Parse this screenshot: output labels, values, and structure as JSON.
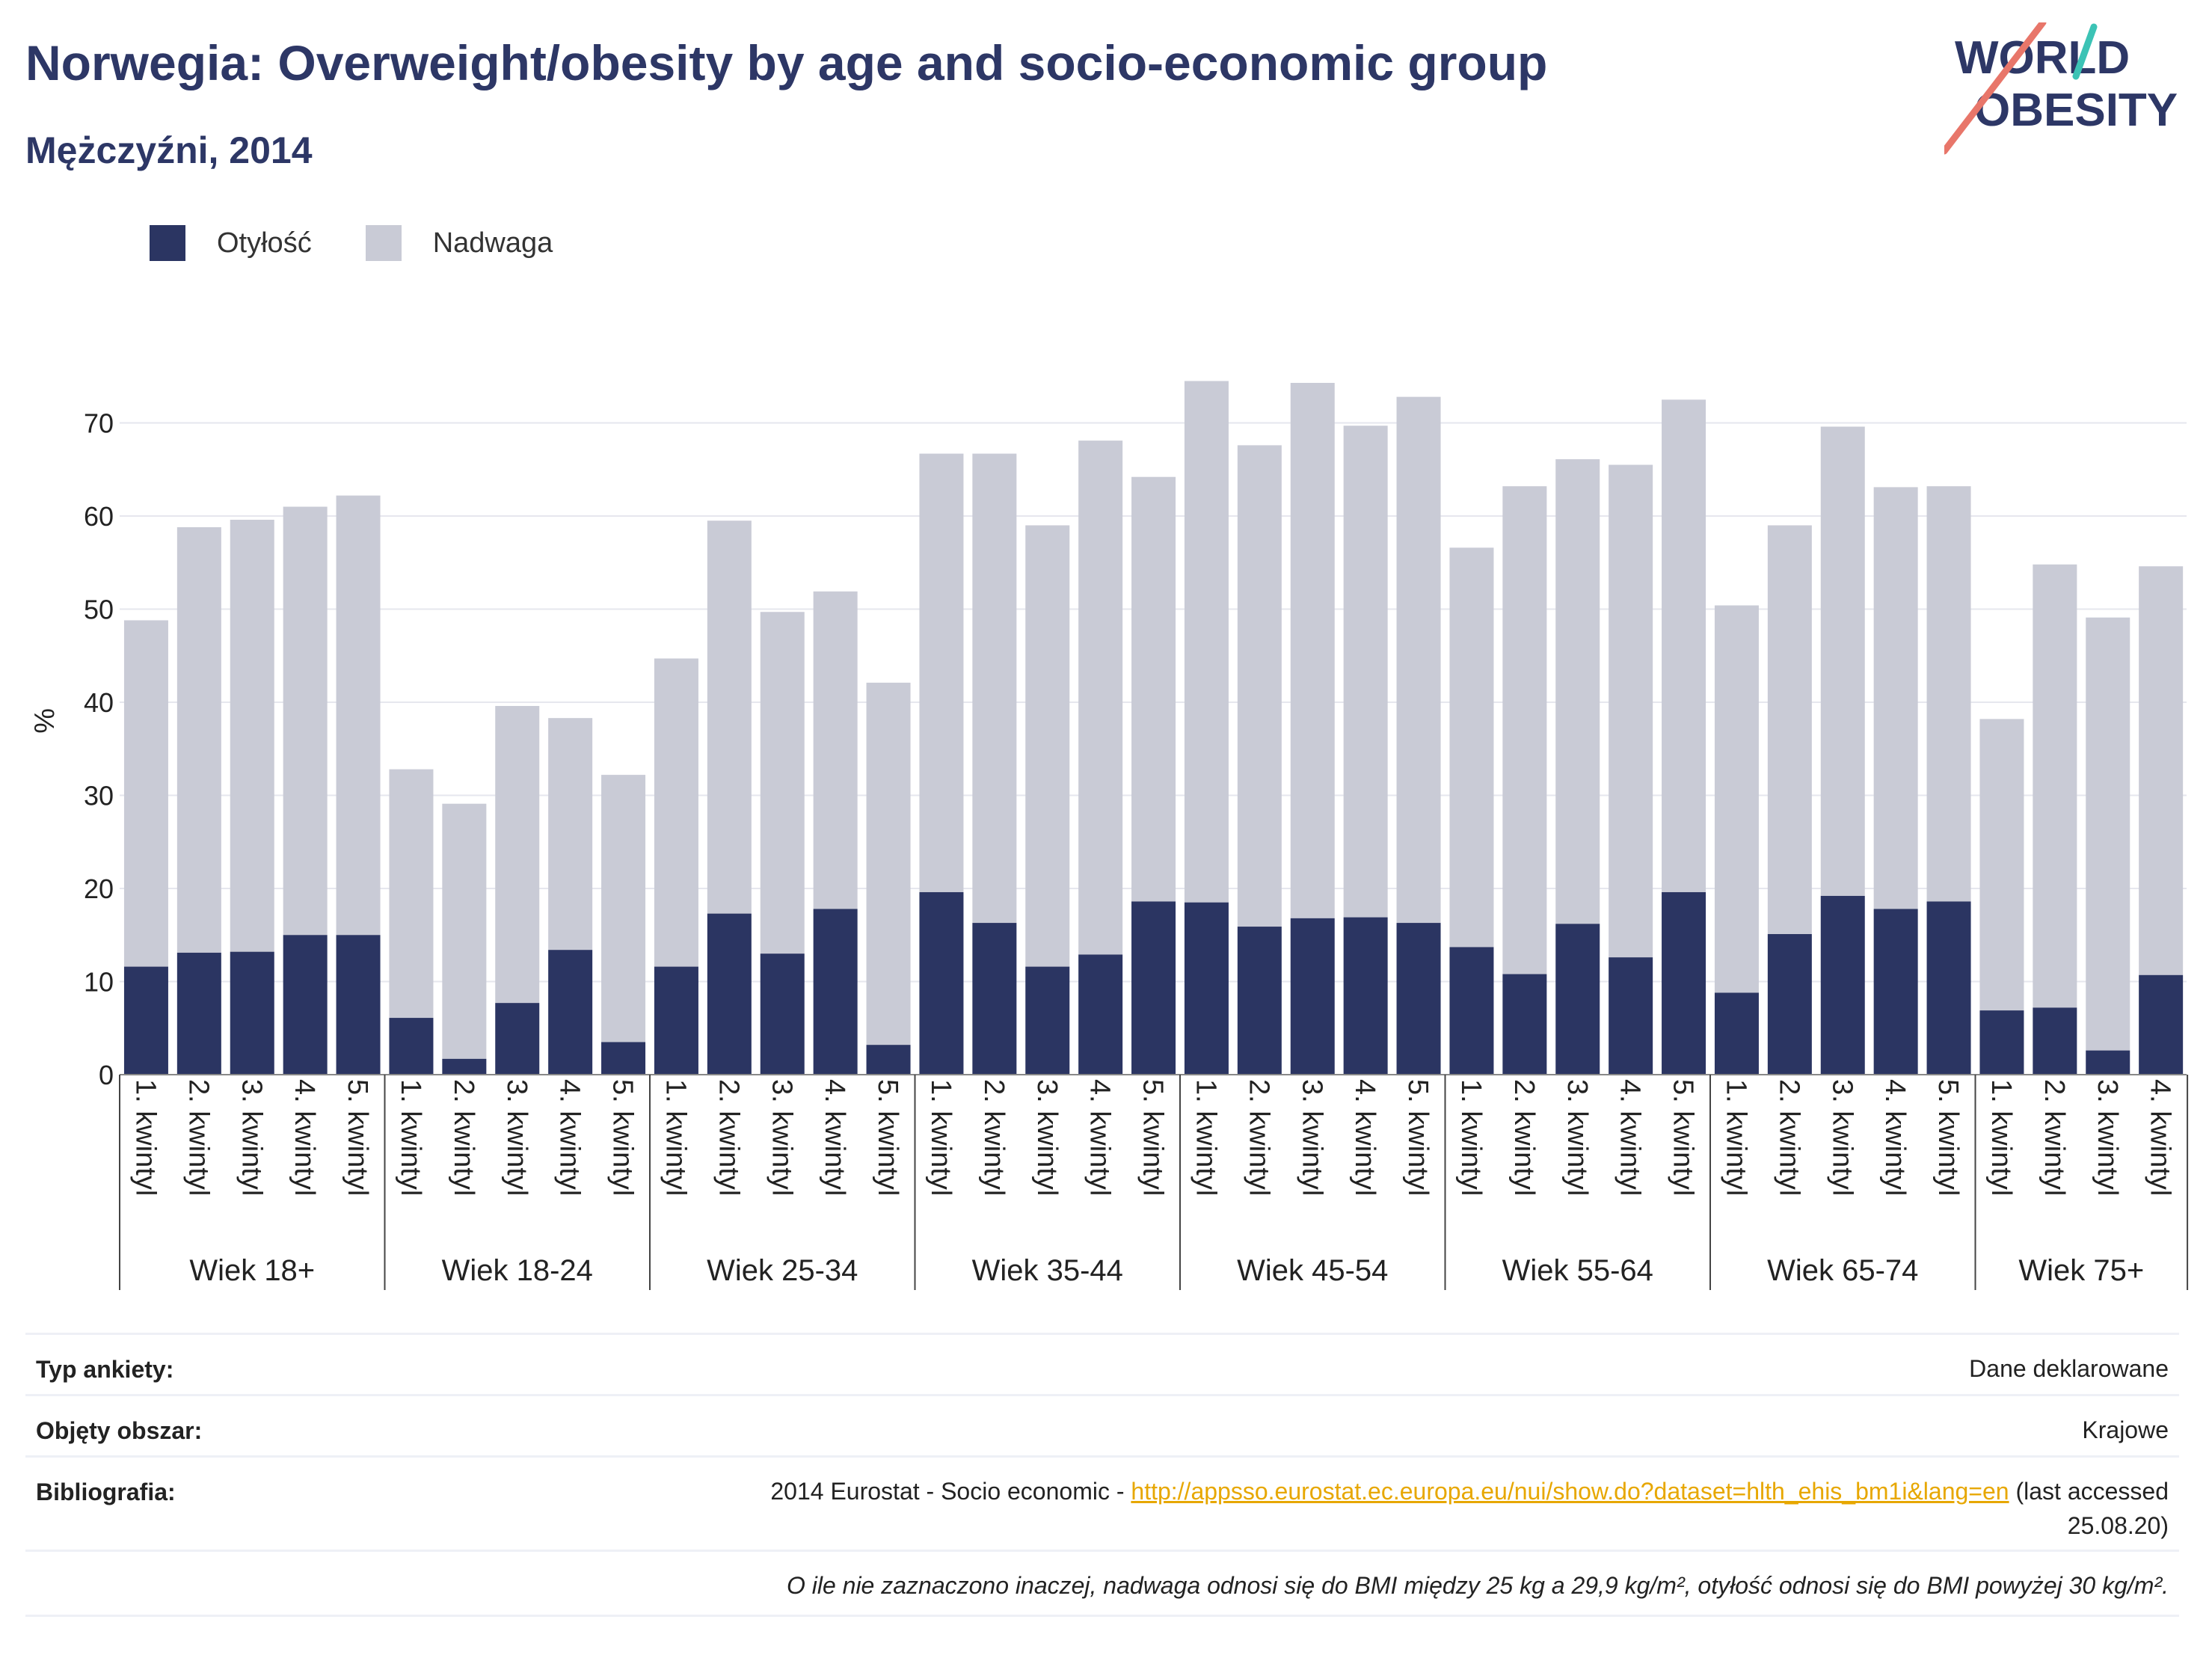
{
  "title": "Norwegia: Overweight/obesity by age and socio-economic group",
  "subtitle": "Mężczyźni, 2014",
  "logo": {
    "line1": "WORLD",
    "line2": "OBESITY"
  },
  "colors": {
    "obesity": "#2b3562",
    "overweight": "#c9cbd6",
    "title": "#2d3766",
    "link": "#e7a700"
  },
  "legend": [
    {
      "label": "Otyłość",
      "color": "#2b3562"
    },
    {
      "label": "Nadwaga",
      "color": "#c9cbd6"
    }
  ],
  "chart_data": {
    "type": "bar",
    "stacked": true,
    "ylabel": "%",
    "ylim": [
      0,
      76
    ],
    "yticks": [
      0,
      10,
      20,
      30,
      40,
      50,
      60,
      70
    ],
    "grid": true,
    "legend_position": "top-left",
    "groups": [
      {
        "label": "Wiek 18+",
        "categories": [
          "1. kwintyl",
          "2. kwintyl",
          "3. kwintyl",
          "4. kwintyl",
          "5. kwintyl"
        ],
        "obesity": [
          11.6,
          13.1,
          13.2,
          15.0,
          15.0
        ],
        "total": [
          48.8,
          58.8,
          59.6,
          61.0,
          62.2
        ]
      },
      {
        "label": "Wiek 18-24",
        "categories": [
          "1. kwintyl",
          "2. kwintyl",
          "3. kwintyl",
          "4. kwintyl",
          "5. kwintyl"
        ],
        "obesity": [
          6.1,
          1.7,
          7.7,
          13.4,
          3.5
        ],
        "total": [
          32.8,
          29.1,
          39.6,
          38.3,
          32.2
        ]
      },
      {
        "label": "Wiek 25-34",
        "categories": [
          "1. kwintyl",
          "2. kwintyl",
          "3. kwintyl",
          "4. kwintyl",
          "5. kwintyl"
        ],
        "obesity": [
          11.6,
          17.3,
          13.0,
          17.8,
          3.2
        ],
        "total": [
          44.7,
          59.5,
          49.7,
          51.9,
          42.1
        ]
      },
      {
        "label": "Wiek 35-44",
        "categories": [
          "1. kwintyl",
          "2. kwintyl",
          "3. kwintyl",
          "4. kwintyl",
          "5. kwintyl"
        ],
        "obesity": [
          19.6,
          16.3,
          11.6,
          12.9,
          18.6
        ],
        "total": [
          66.7,
          66.7,
          59.0,
          68.1,
          64.2
        ]
      },
      {
        "label": "Wiek 45-54",
        "categories": [
          "1. kwintyl",
          "2. kwintyl",
          "3. kwintyl",
          "4. kwintyl",
          "5. kwintyl"
        ],
        "obesity": [
          18.5,
          15.9,
          16.8,
          16.9,
          16.3
        ],
        "total": [
          74.5,
          67.6,
          74.3,
          69.7,
          72.8
        ]
      },
      {
        "label": "Wiek 55-64",
        "categories": [
          "1. kwintyl",
          "2. kwintyl",
          "3. kwintyl",
          "4. kwintyl",
          "5. kwintyl"
        ],
        "obesity": [
          13.7,
          10.8,
          16.2,
          12.6,
          19.6
        ],
        "total": [
          56.6,
          63.2,
          66.1,
          65.5,
          72.5
        ]
      },
      {
        "label": "Wiek 65-74",
        "categories": [
          "1. kwintyl",
          "2. kwintyl",
          "3. kwintyl",
          "4. kwintyl",
          "5. kwintyl"
        ],
        "obesity": [
          8.8,
          15.1,
          19.2,
          17.8,
          18.6
        ],
        "total": [
          50.4,
          59.0,
          69.6,
          63.1,
          63.2
        ]
      },
      {
        "label": "Wiek 75+",
        "categories": [
          "1. kwintyl",
          "2. kwintyl",
          "3. kwintyl",
          "4. kwintyl"
        ],
        "obesity": [
          6.9,
          7.2,
          2.6,
          10.7
        ],
        "total": [
          38.2,
          54.8,
          49.1,
          54.6
        ]
      }
    ]
  },
  "info": {
    "survey_label": "Typ ankiety:",
    "survey_value": "Dane deklarowane",
    "area_label": "Objęty obszar:",
    "area_value": "Krajowe",
    "biblio_label": "Bibliografia:",
    "biblio_prefix": "2014 Eurostat - Socio economic - ",
    "biblio_link": "http://appsso.eurostat.ec.europa.eu/nui/show.do?dataset=hlth_ehis_bm1i&lang=en",
    "biblio_suffix": " (last accessed",
    "biblio_date": "25.08.20)",
    "note": "O ile nie zaznaczono inaczej, nadwaga odnosi się do BMI między 25 kg a 29,9 kg/m², otyłość odnosi się do BMI powyżej 30 kg/m²."
  }
}
